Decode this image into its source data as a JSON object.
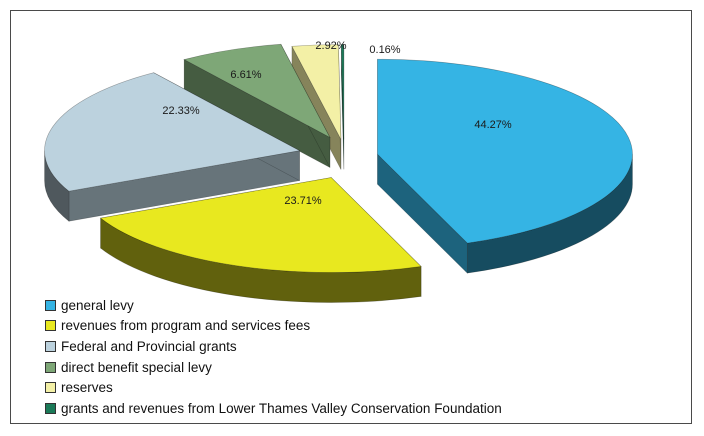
{
  "chart_data": {
    "type": "pie",
    "title": "",
    "slices": [
      {
        "label": "general levy",
        "value": 44.27,
        "value_label": "44.27%",
        "color": "#35b4e4"
      },
      {
        "label": "revenues from program and services fees",
        "value": 23.71,
        "value_label": "23.71%",
        "color": "#e8e81f"
      },
      {
        "label": "Federal and Provincial grants",
        "value": 22.33,
        "value_label": "22.33%",
        "color": "#bcd2de"
      },
      {
        "label": "direct benefit special levy",
        "value": 6.61,
        "value_label": "6.61%",
        "color": "#7ea777"
      },
      {
        "label": "reserves",
        "value": 2.92,
        "value_label": "2.92%",
        "color": "#f3f0a6"
      },
      {
        "label": "grants and revenues from Lower Thames Valley Conservation Foundation",
        "value": 0.16,
        "value_label": "0.16%",
        "color": "#1b7a58"
      }
    ],
    "legend_position": "bottom-left",
    "exploded": true,
    "three_d": true
  }
}
